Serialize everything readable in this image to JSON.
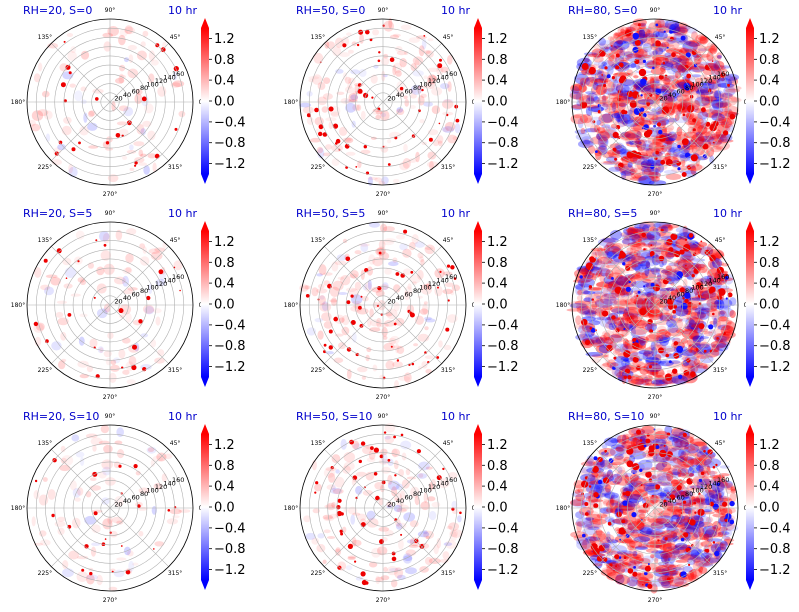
{
  "chart_data": {
    "type": "polar-heatmap",
    "time_label": "10 hr",
    "angle_ticks": [
      "0°",
      "45°",
      "90°",
      "135°",
      "180°",
      "225°",
      "270°",
      "315°"
    ],
    "radial_ticks": [
      "20",
      "40",
      "60",
      "80",
      "100",
      "120",
      "140",
      "160"
    ],
    "radial_max": 180,
    "colorbar": {
      "ticks": [
        "1.2",
        "0.8",
        "0.4",
        "0.0",
        "−0.4",
        "−0.8",
        "−1.2"
      ],
      "vmin": -1.4,
      "vmax": 1.4,
      "colormap": "bwr",
      "colors": {
        "negative": "#0000ff",
        "zero": "#ffffff",
        "positive": "#ff0000"
      }
    },
    "panels": [
      {
        "title": "RH=20, S=0",
        "rh": 20,
        "s": 0
      },
      {
        "title": "RH=50, S=0",
        "rh": 50,
        "s": 0
      },
      {
        "title": "RH=80, S=0",
        "rh": 80,
        "s": 0
      },
      {
        "title": "RH=20, S=5",
        "rh": 20,
        "s": 5
      },
      {
        "title": "RH=50, S=5",
        "rh": 50,
        "s": 5
      },
      {
        "title": "RH=80, S=5",
        "rh": 80,
        "s": 5
      },
      {
        "title": "RH=20, S=10",
        "rh": 20,
        "s": 10
      },
      {
        "title": "RH=50, S=10",
        "rh": 50,
        "s": 10
      },
      {
        "title": "RH=80, S=10",
        "rh": 80,
        "s": 10
      }
    ]
  }
}
